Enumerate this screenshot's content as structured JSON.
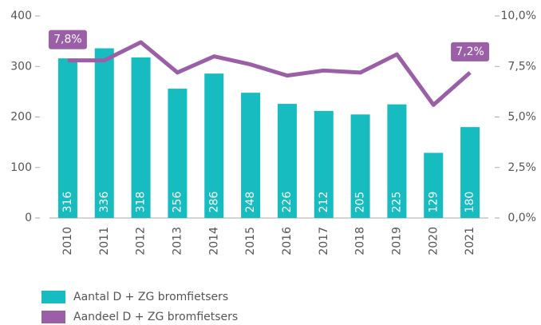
{
  "chart_data": {
    "type": "bar",
    "categories": [
      "2010",
      "2011",
      "2012",
      "2013",
      "2014",
      "2015",
      "2016",
      "2017",
      "2018",
      "2019",
      "2020",
      "2021"
    ],
    "series": [
      {
        "name": "Aantal D + ZG bromfietsers",
        "color": "#16bcc0",
        "type": "bar",
        "values": [
          316,
          336,
          318,
          256,
          286,
          248,
          226,
          212,
          205,
          225,
          129,
          180
        ]
      },
      {
        "name": "Aandeel D + ZG bromfietsers",
        "color": "#9b5fa8",
        "type": "line",
        "axis": "y2",
        "values": [
          7.8,
          7.8,
          8.7,
          7.2,
          8.0,
          7.6,
          7.05,
          7.3,
          7.2,
          8.1,
          5.6,
          7.2
        ],
        "value_labels": [
          "7,8%",
          null,
          null,
          null,
          null,
          null,
          null,
          null,
          null,
          null,
          null,
          "7,2%"
        ]
      }
    ],
    "ylim": [
      0,
      400
    ],
    "yticks": [
      0,
      100,
      200,
      300,
      400
    ],
    "y2lim": [
      0,
      10
    ],
    "y2ticks": [
      {
        "value": 0,
        "label": "0,0%"
      },
      {
        "value": 2.5,
        "label": "2,5%"
      },
      {
        "value": 5,
        "label": "5,0%"
      },
      {
        "value": 7.5,
        "label": "7,5%"
      },
      {
        "value": 10,
        "label": "10,0%"
      }
    ],
    "grid": false,
    "legend": "bottom-left"
  }
}
